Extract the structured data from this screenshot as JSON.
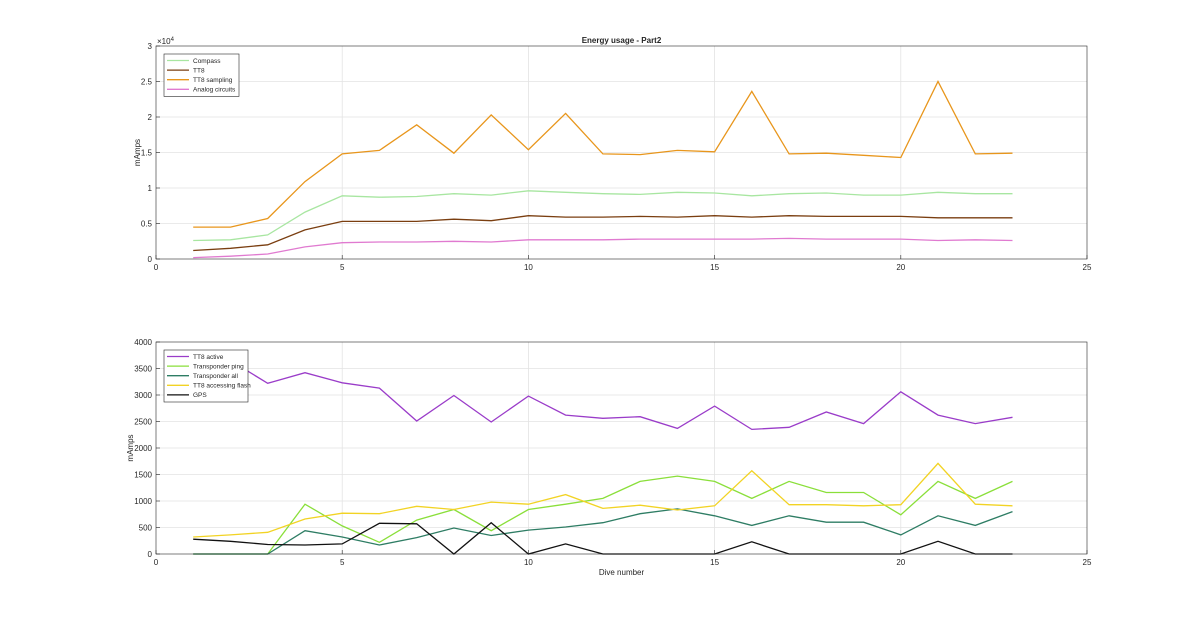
{
  "chart_data": [
    {
      "type": "line",
      "title": "Energy usage - Part2",
      "xlabel": "",
      "ylabel": "mAmps",
      "xlim": [
        0,
        25
      ],
      "ylim": [
        0,
        30000
      ],
      "x_ticks": [
        "0",
        "5",
        "10",
        "15",
        "20",
        "25"
      ],
      "y_ticks": [
        "0",
        "0.5",
        "1",
        "1.5",
        "2",
        "2.5",
        "3"
      ],
      "y_exponent_label": "×10",
      "y_exponent_power": "4",
      "grid": true,
      "legend_position": "top-left",
      "x": [
        1,
        2,
        3,
        4,
        5,
        6,
        7,
        8,
        9,
        10,
        11,
        12,
        13,
        14,
        15,
        16,
        17,
        18,
        19,
        20,
        21,
        22,
        23
      ],
      "series": [
        {
          "name": "Compass",
          "color": "#a8e6a1",
          "values": [
            2600,
            2700,
            3400,
            6600,
            8900,
            8700,
            8800,
            9200,
            9000,
            9600,
            9400,
            9200,
            9100,
            9400,
            9300,
            8900,
            9200,
            9300,
            9000,
            9000,
            9400,
            9200,
            9200
          ]
        },
        {
          "name": "TT8",
          "color": "#7a3e10",
          "values": [
            1200,
            1500,
            2000,
            4100,
            5300,
            5300,
            5300,
            5600,
            5400,
            6100,
            5900,
            5900,
            6000,
            5900,
            6100,
            5900,
            6100,
            6000,
            6000,
            6000,
            5800,
            5800,
            5800
          ]
        },
        {
          "name": "TT8 sampling",
          "color": "#e8961c",
          "values": [
            4500,
            4500,
            5700,
            10900,
            14800,
            15300,
            18900,
            14900,
            20300,
            15400,
            20500,
            14800,
            14700,
            15300,
            15100,
            23600,
            14800,
            14900,
            14600,
            14300,
            25000,
            14800,
            14900
          ]
        },
        {
          "name": "Analog circuits",
          "color": "#e07ad0",
          "values": [
            200,
            400,
            700,
            1700,
            2300,
            2400,
            2400,
            2500,
            2400,
            2700,
            2700,
            2700,
            2800,
            2800,
            2800,
            2800,
            2900,
            2800,
            2800,
            2800,
            2600,
            2700,
            2600
          ]
        }
      ]
    },
    {
      "type": "line",
      "title": "",
      "xlabel": "Dive number",
      "ylabel": "mAmps",
      "xlim": [
        0,
        25
      ],
      "ylim": [
        0,
        4000
      ],
      "x_ticks": [
        "0",
        "5",
        "10",
        "15",
        "20",
        "25"
      ],
      "y_ticks": [
        "0",
        "500",
        "1000",
        "1500",
        "2000",
        "2500",
        "3000",
        "3500",
        "4000"
      ],
      "grid": true,
      "legend_position": "top-left",
      "x": [
        1,
        2,
        3,
        4,
        5,
        6,
        7,
        8,
        9,
        10,
        11,
        12,
        13,
        14,
        15,
        16,
        17,
        18,
        19,
        20,
        21,
        22,
        23
      ],
      "series": [
        {
          "name": "TT8 active",
          "color": "#9a3cc9",
          "values": [
            3700,
            3650,
            3220,
            3420,
            3230,
            3130,
            2510,
            2990,
            2490,
            2980,
            2620,
            2560,
            2590,
            2370,
            2790,
            2350,
            2390,
            2680,
            2460,
            3060,
            2620,
            2460,
            2580
          ]
        },
        {
          "name": "Transponder ping",
          "color": "#8adf3a",
          "values": [
            0,
            0,
            0,
            940,
            530,
            220,
            640,
            840,
            440,
            840,
            940,
            1050,
            1370,
            1470,
            1370,
            1050,
            1370,
            1160,
            1160,
            740,
            1370,
            1050,
            1370
          ]
        },
        {
          "name": "Transponder all",
          "color": "#2e7d64",
          "values": [
            0,
            0,
            0,
            440,
            320,
            170,
            310,
            490,
            350,
            450,
            510,
            590,
            760,
            850,
            720,
            540,
            720,
            600,
            600,
            360,
            720,
            540,
            800
          ]
        },
        {
          "name": "TT8 accessing flash",
          "color": "#f2d324",
          "values": [
            320,
            360,
            410,
            660,
            770,
            760,
            900,
            840,
            980,
            940,
            1120,
            860,
            920,
            830,
            910,
            1570,
            930,
            930,
            910,
            930,
            1710,
            940,
            910
          ]
        },
        {
          "name": "GPS",
          "color": "#111111",
          "values": [
            280,
            240,
            180,
            170,
            190,
            580,
            570,
            0,
            590,
            0,
            190,
            0,
            0,
            0,
            0,
            230,
            0,
            0,
            0,
            0,
            240,
            0,
            0
          ]
        }
      ]
    }
  ]
}
